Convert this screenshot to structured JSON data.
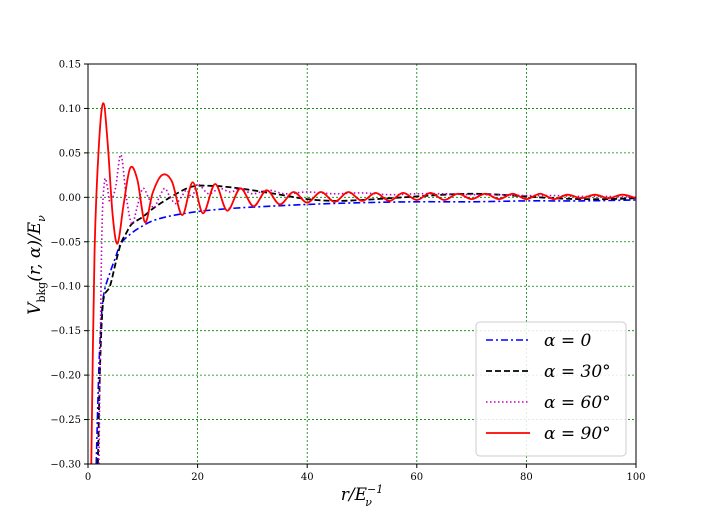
{
  "chart_data": {
    "type": "line",
    "xlabel": "r/E_ν^{-1}",
    "xlabel_parts": {
      "main": "r/E",
      "sub": "ν",
      "sup": "−1"
    },
    "ylabel": "V_bkg(r,α)/E_ν",
    "ylabel_parts": {
      "v": "V",
      "sub": "bkg",
      "args": "(r, α)/E",
      "sub2": "ν"
    },
    "xlim": [
      0,
      100
    ],
    "ylim": [
      -0.3,
      0.15
    ],
    "xticks": [
      "0",
      "20",
      "40",
      "60",
      "80",
      "100"
    ],
    "yticks": [
      "0.15",
      "0.10",
      "0.05",
      "0.00",
      "−0.05",
      "−0.10",
      "−0.15",
      "−0.20",
      "−0.25",
      "−0.30"
    ],
    "grid": true,
    "grid_color": "#008000",
    "legend_position": "lower-right",
    "series": [
      {
        "name": "α = 0",
        "color": "#0000ff",
        "dash": "dashdot",
        "x": [
          1.5,
          2,
          2.5,
          3,
          4,
          5,
          6,
          8,
          10,
          12,
          15,
          20,
          25,
          30,
          40,
          50,
          60,
          70,
          80,
          90,
          100
        ],
        "y": [
          -0.3,
          -0.19,
          -0.13,
          -0.105,
          -0.085,
          -0.068,
          -0.052,
          -0.04,
          -0.032,
          -0.026,
          -0.021,
          -0.016,
          -0.013,
          -0.011,
          -0.008,
          -0.006,
          -0.005,
          -0.005,
          -0.004,
          -0.004,
          -0.003
        ]
      },
      {
        "name": "α = 30°",
        "color": "#000000",
        "dash": "dashed",
        "x": [
          1.8,
          2.2,
          2.6,
          3,
          4,
          5,
          6,
          7,
          8,
          10,
          12,
          15,
          18,
          20,
          22,
          25,
          30,
          35,
          40,
          45,
          50,
          55,
          60,
          65,
          70,
          75,
          80,
          85,
          90,
          95,
          100
        ],
        "y": [
          -0.3,
          -0.19,
          -0.13,
          -0.11,
          -0.1,
          -0.075,
          -0.052,
          -0.04,
          -0.03,
          -0.022,
          -0.012,
          0.0,
          0.01,
          0.013,
          0.013,
          0.012,
          0.008,
          0.003,
          -0.002,
          -0.004,
          -0.003,
          -0.001,
          0.001,
          0.003,
          0.004,
          0.003,
          0.001,
          -0.001,
          -0.002,
          -0.002,
          -0.001
        ]
      },
      {
        "name": "α = 60°",
        "color": "#bf00bf",
        "dash": "dotted",
        "x": [
          2,
          2.5,
          3,
          3.5,
          4,
          5,
          6,
          7,
          8,
          9,
          10,
          11,
          12,
          13,
          14,
          15,
          16,
          17,
          18,
          19,
          20,
          22,
          24,
          26,
          28,
          30,
          33,
          36,
          40,
          45,
          50,
          55,
          60,
          65,
          70,
          75,
          80,
          85,
          90,
          95,
          100
        ],
        "y": [
          -0.3,
          -0.05,
          0.017,
          0.013,
          -0.005,
          0.01,
          0.048,
          0.0,
          -0.03,
          -0.01,
          0.01,
          0.0,
          -0.012,
          0.0,
          0.01,
          0.0,
          -0.007,
          0.0,
          0.008,
          0.0,
          0.015,
          0.004,
          0.01,
          0.006,
          0.01,
          0.004,
          0.008,
          0.004,
          0.006,
          0.004,
          0.005,
          0.003,
          0.004,
          0.004,
          0.003,
          0.003,
          0.002,
          0.002,
          0.001,
          0.001,
          0.0
        ]
      },
      {
        "name": "α = 90°",
        "color": "#ff0000",
        "dash": "solid",
        "x": [
          0.6,
          1.2,
          2.0,
          2.8,
          3.6,
          4.5,
          5.4,
          6.5,
          7.7,
          9.0,
          10.4,
          11.8,
          13.5,
          15.3,
          17.2,
          19.1,
          21.0,
          23.2,
          25.4,
          27.8,
          30.2,
          32.6,
          35.0,
          37.5,
          40.0,
          42.5,
          45.0,
          47.5,
          50.0,
          52.5,
          55.0,
          57.5,
          60.0,
          62.5,
          65.0,
          67.5,
          70.0,
          72.5,
          75.0,
          77.5,
          80.0,
          82.5,
          85.0,
          87.5,
          90.0,
          92.5,
          95.0,
          97.5,
          100.0
        ],
        "y": [
          -0.3,
          -0.06,
          0.06,
          0.106,
          0.06,
          -0.02,
          -0.052,
          -0.008,
          0.033,
          0.02,
          -0.028,
          0.005,
          0.025,
          0.018,
          -0.02,
          0.017,
          -0.018,
          0.015,
          -0.015,
          0.01,
          -0.01,
          0.008,
          -0.008,
          0.006,
          -0.006,
          0.006,
          -0.005,
          0.006,
          -0.004,
          0.005,
          -0.004,
          0.005,
          -0.003,
          0.005,
          -0.003,
          0.004,
          -0.002,
          0.004,
          -0.002,
          0.004,
          -0.002,
          0.004,
          -0.002,
          0.003,
          -0.001,
          0.003,
          -0.001,
          0.003,
          -0.001
        ]
      }
    ]
  }
}
